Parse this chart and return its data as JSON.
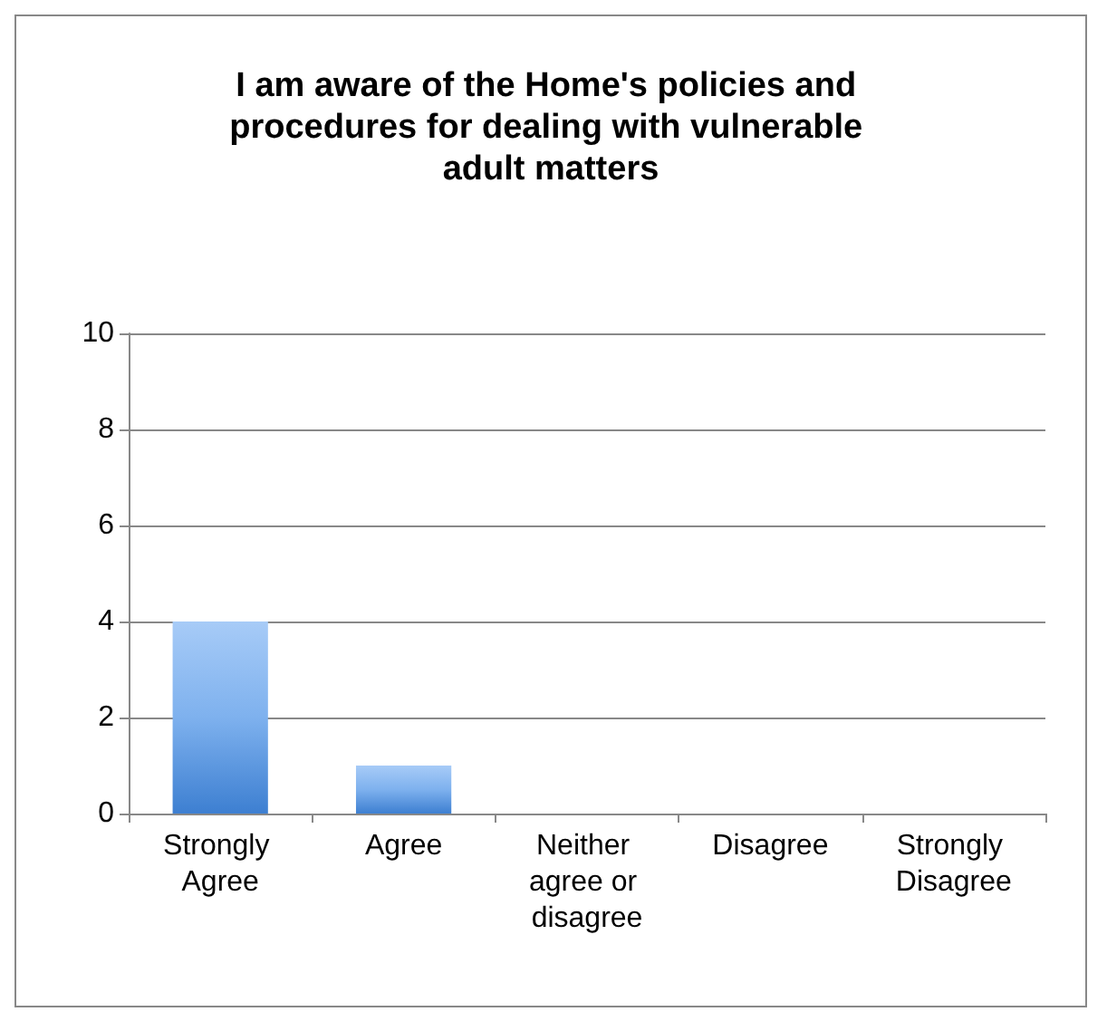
{
  "chart_data": {
    "type": "bar",
    "title": "I am aware of the Home's policies and procedures for dealing with vulnerable adult matters",
    "categories": [
      "Strongly Agree",
      "Agree",
      "Neither agree or disagree",
      "Disagree",
      "Strongly Disagree"
    ],
    "values": [
      4,
      1,
      0,
      0,
      0
    ],
    "color": "#7eb1ee",
    "ylim": [
      0,
      10
    ],
    "yticks": [
      0,
      2,
      4,
      6,
      8,
      10
    ],
    "grid": "y"
  }
}
